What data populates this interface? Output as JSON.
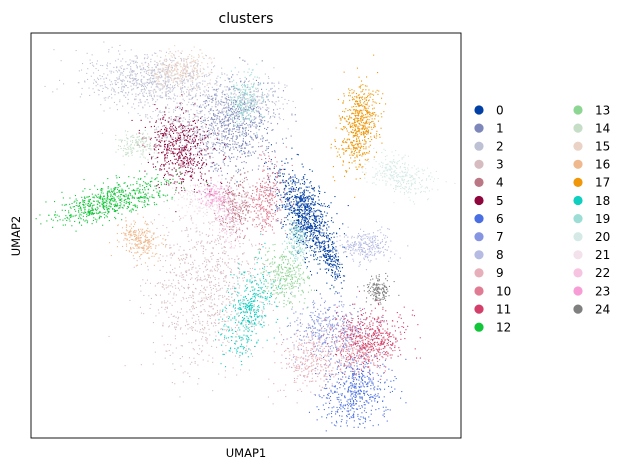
{
  "chart_data": {
    "type": "scatter",
    "title": "clusters",
    "xlabel": "UMAP1",
    "ylabel": "UMAP2",
    "xticks": [],
    "yticks": [],
    "grid": false,
    "legend_placement": "right, outside plot, two columns",
    "series": [
      {
        "name": "0",
        "color": "#023fa5"
      },
      {
        "name": "1",
        "color": "#7d87b9"
      },
      {
        "name": "2",
        "color": "#bec1d4"
      },
      {
        "name": "3",
        "color": "#d6bcc0"
      },
      {
        "name": "4",
        "color": "#bb7784"
      },
      {
        "name": "5",
        "color": "#8e063b"
      },
      {
        "name": "6",
        "color": "#4a6fe3"
      },
      {
        "name": "7",
        "color": "#8595e1"
      },
      {
        "name": "8",
        "color": "#b5bbe3"
      },
      {
        "name": "9",
        "color": "#e6afb9"
      },
      {
        "name": "10",
        "color": "#e07b91"
      },
      {
        "name": "11",
        "color": "#d33f6a"
      },
      {
        "name": "12",
        "color": "#11c638"
      },
      {
        "name": "13",
        "color": "#8dd593"
      },
      {
        "name": "14",
        "color": "#c6dec7"
      },
      {
        "name": "15",
        "color": "#ead3c6"
      },
      {
        "name": "16",
        "color": "#f0b98d"
      },
      {
        "name": "17",
        "color": "#ef9708"
      },
      {
        "name": "18",
        "color": "#0fcfc0"
      },
      {
        "name": "19",
        "color": "#9cded6"
      },
      {
        "name": "20",
        "color": "#d5eae7"
      },
      {
        "name": "21",
        "color": "#f3e1eb"
      },
      {
        "name": "22",
        "color": "#f6c4e1"
      },
      {
        "name": "23",
        "color": "#f79cd4"
      },
      {
        "name": "24",
        "color": "#7f7f7f"
      }
    ]
  }
}
